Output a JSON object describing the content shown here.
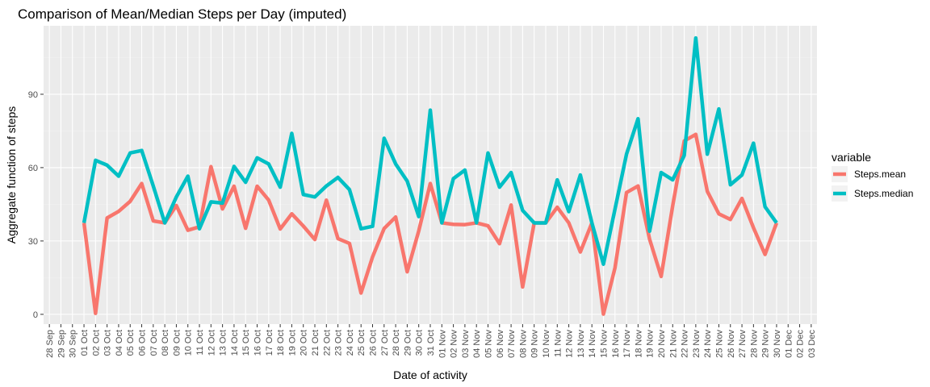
{
  "chart_data": {
    "type": "line",
    "title": "Comparison of Mean/Median Steps per Day (imputed)",
    "xlabel": "Date of activity",
    "ylabel": "Aggregate function of steps",
    "x_tick_labels": [
      "28 Sep",
      "29 Sep",
      "30 Sep",
      "01 Oct",
      "02 Oct",
      "03 Oct",
      "04 Oct",
      "05 Oct",
      "06 Oct",
      "07 Oct",
      "08 Oct",
      "09 Oct",
      "10 Oct",
      "11 Oct",
      "12 Oct",
      "13 Oct",
      "14 Oct",
      "15 Oct",
      "16 Oct",
      "17 Oct",
      "18 Oct",
      "19 Oct",
      "20 Oct",
      "21 Oct",
      "22 Oct",
      "23 Oct",
      "24 Oct",
      "25 Oct",
      "26 Oct",
      "27 Oct",
      "28 Oct",
      "29 Oct",
      "30 Oct",
      "31 Oct",
      "01 Nov",
      "02 Nov",
      "03 Nov",
      "04 Nov",
      "05 Nov",
      "06 Nov",
      "07 Nov",
      "08 Nov",
      "09 Nov",
      "10 Nov",
      "11 Nov",
      "12 Nov",
      "13 Nov",
      "14 Nov",
      "15 Nov",
      "16 Nov",
      "17 Nov",
      "18 Nov",
      "19 Nov",
      "20 Nov",
      "21 Nov",
      "22 Nov",
      "23 Nov",
      "24 Nov",
      "25 Nov",
      "26 Nov",
      "27 Nov",
      "28 Nov",
      "29 Nov",
      "30 Nov",
      "01 Dec",
      "02 Dec",
      "03 Dec"
    ],
    "y_ticks": [
      0,
      30,
      60,
      90
    ],
    "y_tick_labels": [
      "0",
      "30",
      "60",
      "90"
    ],
    "ylim": [
      -4,
      118
    ],
    "grid": true,
    "legend_position": "right",
    "legend_title": "variable",
    "x": [
      "01 Oct",
      "02 Oct",
      "03 Oct",
      "04 Oct",
      "05 Oct",
      "06 Oct",
      "07 Oct",
      "08 Oct",
      "09 Oct",
      "10 Oct",
      "11 Oct",
      "12 Oct",
      "13 Oct",
      "14 Oct",
      "15 Oct",
      "16 Oct",
      "17 Oct",
      "18 Oct",
      "19 Oct",
      "20 Oct",
      "21 Oct",
      "22 Oct",
      "23 Oct",
      "24 Oct",
      "25 Oct",
      "26 Oct",
      "27 Oct",
      "28 Oct",
      "29 Oct",
      "30 Oct",
      "31 Oct",
      "01 Nov",
      "02 Nov",
      "03 Nov",
      "04 Nov",
      "05 Nov",
      "06 Nov",
      "07 Nov",
      "08 Nov",
      "09 Nov",
      "10 Nov",
      "11 Nov",
      "12 Nov",
      "13 Nov",
      "14 Nov",
      "15 Nov",
      "16 Nov",
      "17 Nov",
      "18 Nov",
      "19 Nov",
      "20 Nov",
      "21 Nov",
      "22 Nov",
      "23 Nov",
      "24 Nov",
      "25 Nov",
      "26 Nov",
      "27 Nov",
      "28 Nov",
      "29 Nov",
      "30 Nov"
    ],
    "series": [
      {
        "name": "Steps.mean",
        "color": "#F8766D",
        "values": [
          37.4,
          0.4,
          39.4,
          42.1,
          46.2,
          53.5,
          38.2,
          37.4,
          44.5,
          34.4,
          35.8,
          60.4,
          43.1,
          52.4,
          35.2,
          52.4,
          46.7,
          34.9,
          41.1,
          36.1,
          30.6,
          46.7,
          30.97,
          29.0,
          8.7,
          23.5,
          35.1,
          39.8,
          17.4,
          34.1,
          53.5,
          37.4,
          36.8,
          36.7,
          37.4,
          36.2,
          28.9,
          44.7,
          11.2,
          37.4,
          37.4,
          43.8,
          37.4,
          25.5,
          37.4,
          0.1,
          19.0,
          49.8,
          52.5,
          30.7,
          15.5,
          44.4,
          70.9,
          73.6,
          50.3,
          41.1,
          38.8,
          47.4,
          35.4,
          24.5,
          37.4
        ]
      },
      {
        "name": "Steps.median",
        "color": "#00BFC4",
        "values": [
          37.4,
          63.0,
          61.0,
          56.5,
          66.0,
          67.0,
          52.5,
          37.4,
          48.0,
          56.5,
          35.0,
          46.0,
          45.5,
          60.5,
          54.0,
          64.0,
          61.5,
          52.0,
          74.0,
          49.0,
          48.0,
          52.5,
          56.0,
          51.0,
          35.0,
          36.0,
          72.0,
          61.5,
          54.5,
          40.0,
          83.5,
          37.4,
          55.5,
          59.0,
          37.4,
          66.0,
          52.0,
          58.0,
          42.5,
          37.4,
          37.4,
          55.0,
          42.0,
          57.0,
          37.4,
          20.5,
          43.0,
          65.5,
          80.0,
          34.0,
          58.0,
          55.0,
          65.0,
          113.0,
          65.5,
          84.0,
          53.0,
          57.0,
          70.0,
          44.0,
          37.4
        ]
      }
    ]
  }
}
